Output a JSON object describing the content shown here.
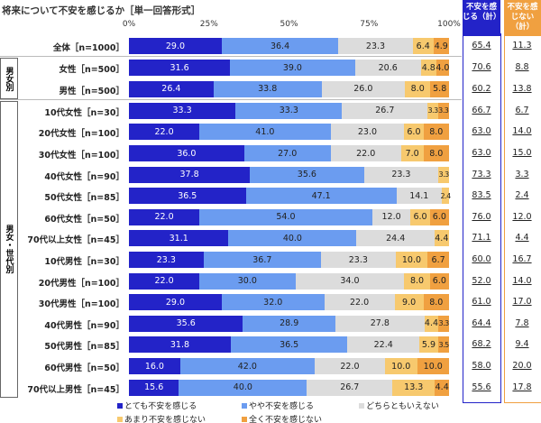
{
  "chart_data": {
    "type": "bar",
    "orientation": "horizontal-stacked-100",
    "title": "将来について不安を感じるか［単一回答形式］",
    "xlim": [
      0,
      100
    ],
    "x_ticks": [
      "0%",
      "25%",
      "50%",
      "75%",
      "100%"
    ],
    "legend_placement": "bottom",
    "series": [
      {
        "name": "とても不安を感じる",
        "color": "#2323c8"
      },
      {
        "name": "やや不安を感じる",
        "color": "#6b9cf0"
      },
      {
        "name": "どちらともいえない",
        "color": "#dcdcdc"
      },
      {
        "name": "あまり不安を感じない",
        "color": "#f7c96e"
      },
      {
        "name": "全く不安を感じない",
        "color": "#f0a040"
      }
    ],
    "total_headers": {
      "anxious": "不安を感じる（計）",
      "not_anxious": "不安を感じない（計）"
    },
    "total_colors": {
      "anxious": "#2323c8",
      "not_anxious": "#f0a040"
    },
    "sections": [
      {
        "label": "",
        "rows": [
          {
            "category": "全体［n=1000］",
            "values": [
              29.0,
              36.4,
              23.3,
              6.4,
              4.9
            ],
            "anxious": "65.4",
            "not_anxious": "11.3"
          }
        ]
      },
      {
        "label": "男女別",
        "rows": [
          {
            "category": "女性［n=500］",
            "values": [
              31.6,
              39.0,
              20.6,
              4.8,
              4.0
            ],
            "anxious": "70.6",
            "not_anxious": "8.8"
          },
          {
            "category": "男性［n=500］",
            "values": [
              26.4,
              33.8,
              26.0,
              8.0,
              5.8
            ],
            "anxious": "60.2",
            "not_anxious": "13.8"
          }
        ]
      },
      {
        "label": "男女・世代別",
        "rows": [
          {
            "category": "10代女性［n=30］",
            "values": [
              33.3,
              33.3,
              26.7,
              3.3,
              3.3
            ],
            "anxious": "66.7",
            "not_anxious": "6.7"
          },
          {
            "category": "20代女性［n=100］",
            "values": [
              22.0,
              41.0,
              23.0,
              6.0,
              8.0
            ],
            "anxious": "63.0",
            "not_anxious": "14.0"
          },
          {
            "category": "30代女性［n=100］",
            "values": [
              36.0,
              27.0,
              22.0,
              7.0,
              8.0
            ],
            "anxious": "63.0",
            "not_anxious": "15.0"
          },
          {
            "category": "40代女性［n=90］",
            "values": [
              37.8,
              35.6,
              23.3,
              3.3,
              0
            ],
            "anxious": "73.3",
            "not_anxious": "3.3"
          },
          {
            "category": "50代女性［n=85］",
            "values": [
              36.5,
              47.1,
              14.1,
              2.4,
              0
            ],
            "anxious": "83.5",
            "not_anxious": "2.4"
          },
          {
            "category": "60代女性［n=50］",
            "values": [
              22.0,
              54.0,
              12.0,
              6.0,
              6.0
            ],
            "anxious": "76.0",
            "not_anxious": "12.0"
          },
          {
            "category": "70代以上女性［n=45］",
            "values": [
              31.1,
              40.0,
              24.4,
              4.4,
              0
            ],
            "anxious": "71.1",
            "not_anxious": "4.4"
          },
          {
            "category": "10代男性［n=30］",
            "values": [
              23.3,
              36.7,
              23.3,
              10.0,
              6.7
            ],
            "anxious": "60.0",
            "not_anxious": "16.7"
          },
          {
            "category": "20代男性［n=100］",
            "values": [
              22.0,
              30.0,
              34.0,
              8.0,
              6.0
            ],
            "anxious": "52.0",
            "not_anxious": "14.0"
          },
          {
            "category": "30代男性［n=100］",
            "values": [
              29.0,
              32.0,
              22.0,
              9.0,
              8.0
            ],
            "anxious": "61.0",
            "not_anxious": "17.0"
          },
          {
            "category": "40代男性［n=90］",
            "values": [
              35.6,
              28.9,
              27.8,
              4.4,
              3.3
            ],
            "anxious": "64.4",
            "not_anxious": "7.8"
          },
          {
            "category": "50代男性［n=85］",
            "values": [
              31.8,
              36.5,
              22.4,
              5.9,
              3.5
            ],
            "anxious": "68.2",
            "not_anxious": "9.4"
          },
          {
            "category": "60代男性［n=50］",
            "values": [
              16.0,
              42.0,
              22.0,
              10.0,
              10.0
            ],
            "anxious": "58.0",
            "not_anxious": "20.0"
          },
          {
            "category": "70代以上男性［n=45］",
            "values": [
              15.6,
              40.0,
              26.7,
              13.3,
              4.4
            ],
            "anxious": "55.6",
            "not_anxious": "17.8"
          }
        ]
      }
    ]
  }
}
